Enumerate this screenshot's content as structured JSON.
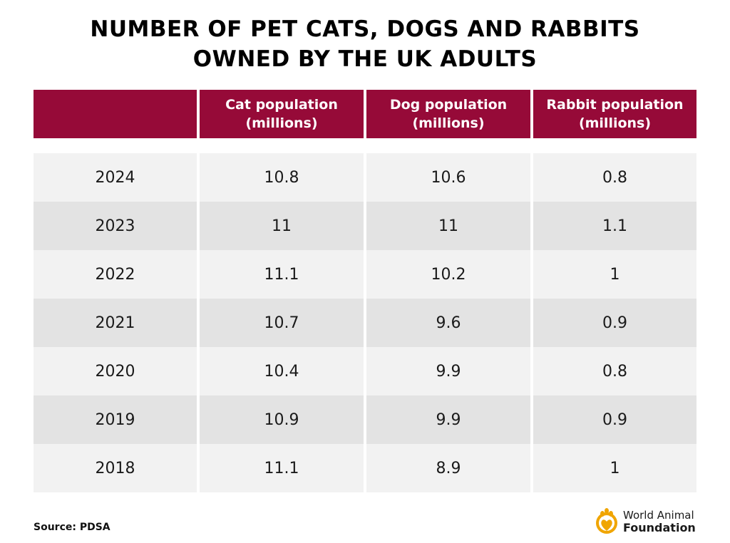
{
  "title": {
    "line1": "NUMBER OF PET CATS, DOGS AND RABBITS",
    "line2": "OWNED BY THE UK ADULTS"
  },
  "chart_data": {
    "type": "table",
    "columns": [
      {
        "line1": "",
        "line2": ""
      },
      {
        "line1": "Cat population",
        "line2": "(millions)"
      },
      {
        "line1": "Dog population",
        "line2": "(millions)"
      },
      {
        "line1": "Rabbit population",
        "line2": "(millions)"
      }
    ],
    "rows": [
      [
        "2024",
        "10.8",
        "10.6",
        "0.8"
      ],
      [
        "2023",
        "11",
        "11",
        "1.1"
      ],
      [
        "2022",
        "11.1",
        "10.2",
        "1"
      ],
      [
        "2021",
        "10.7",
        "9.6",
        "0.9"
      ],
      [
        "2020",
        "10.4",
        "9.9",
        "0.8"
      ],
      [
        "2019",
        "10.9",
        "9.9",
        "0.9"
      ],
      [
        "2018",
        "11.1",
        "8.9",
        "1"
      ]
    ]
  },
  "footer": {
    "source": "Source: PDSA"
  },
  "logo": {
    "line1": "World Animal",
    "line2": "Foundation",
    "icon": "paw-heart-logo-icon"
  },
  "colors": {
    "header_bg": "#960a38",
    "row_light": "#f2f2f2",
    "row_dark": "#e3e3e3",
    "logo_accent": "#f0a500"
  }
}
